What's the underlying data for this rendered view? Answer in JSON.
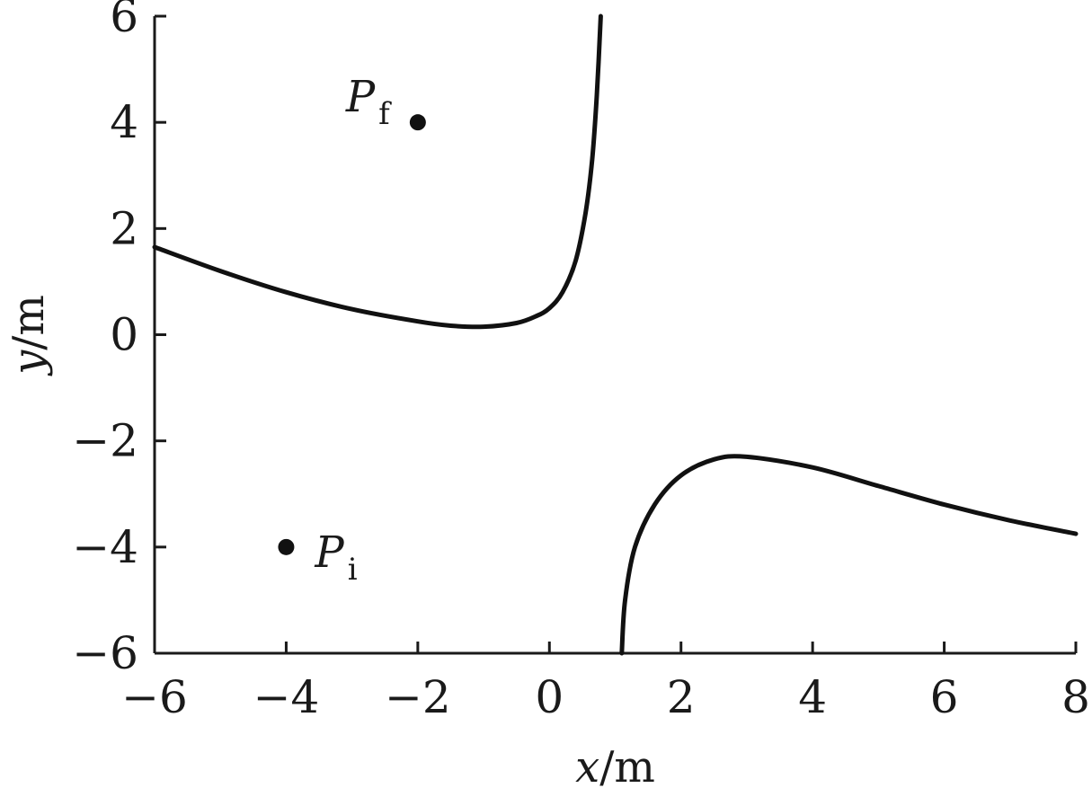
{
  "chart_data": {
    "type": "line",
    "xlabel": "x/m",
    "ylabel": "y/m",
    "xlim": [
      -6,
      8
    ],
    "ylim": [
      -6,
      6
    ],
    "x_ticks": [
      -6,
      -4,
      -2,
      0,
      2,
      4,
      6,
      8
    ],
    "y_ticks": [
      6,
      4,
      2,
      0,
      -2,
      -4,
      -6
    ],
    "x_tick_labels": [
      "−6",
      "−4",
      "−2",
      "0",
      "2",
      "4",
      "6",
      "8"
    ],
    "y_tick_labels": [
      "6",
      "4",
      "2",
      "0",
      "−2",
      "−4",
      "−6"
    ],
    "grid": false,
    "series": [
      {
        "values": [
          {
            "x": -6,
            "y": 1.65
          },
          {
            "x": -5,
            "y": 1.2
          },
          {
            "x": -4,
            "y": 0.8
          },
          {
            "x": -3,
            "y": 0.48
          },
          {
            "x": -2,
            "y": 0.25
          },
          {
            "x": -1.5,
            "y": 0.17
          },
          {
            "x": -1,
            "y": 0.15
          },
          {
            "x": -0.5,
            "y": 0.22
          },
          {
            "x": -0.2,
            "y": 0.35
          },
          {
            "x": 0,
            "y": 0.5
          },
          {
            "x": 0.2,
            "y": 0.8
          },
          {
            "x": 0.4,
            "y": 1.4
          },
          {
            "x": 0.55,
            "y": 2.3
          },
          {
            "x": 0.65,
            "y": 3.3
          },
          {
            "x": 0.72,
            "y": 4.5
          },
          {
            "x": 0.78,
            "y": 6.0
          }
        ]
      },
      {
        "values": [
          {
            "x": 1.1,
            "y": -6.0
          },
          {
            "x": 1.15,
            "y": -5.0
          },
          {
            "x": 1.3,
            "y": -4.0
          },
          {
            "x": 1.6,
            "y": -3.2
          },
          {
            "x": 2.0,
            "y": -2.65
          },
          {
            "x": 2.5,
            "y": -2.35
          },
          {
            "x": 3.0,
            "y": -2.3
          },
          {
            "x": 4.0,
            "y": -2.5
          },
          {
            "x": 5.0,
            "y": -2.85
          },
          {
            "x": 6.0,
            "y": -3.2
          },
          {
            "x": 7.0,
            "y": -3.5
          },
          {
            "x": 8.0,
            "y": -3.75
          }
        ]
      }
    ],
    "points": [
      {
        "label": "P",
        "subscript": "f",
        "x": -2,
        "y": 4
      },
      {
        "label": "P",
        "subscript": "i",
        "x": -4,
        "y": -4
      }
    ]
  }
}
